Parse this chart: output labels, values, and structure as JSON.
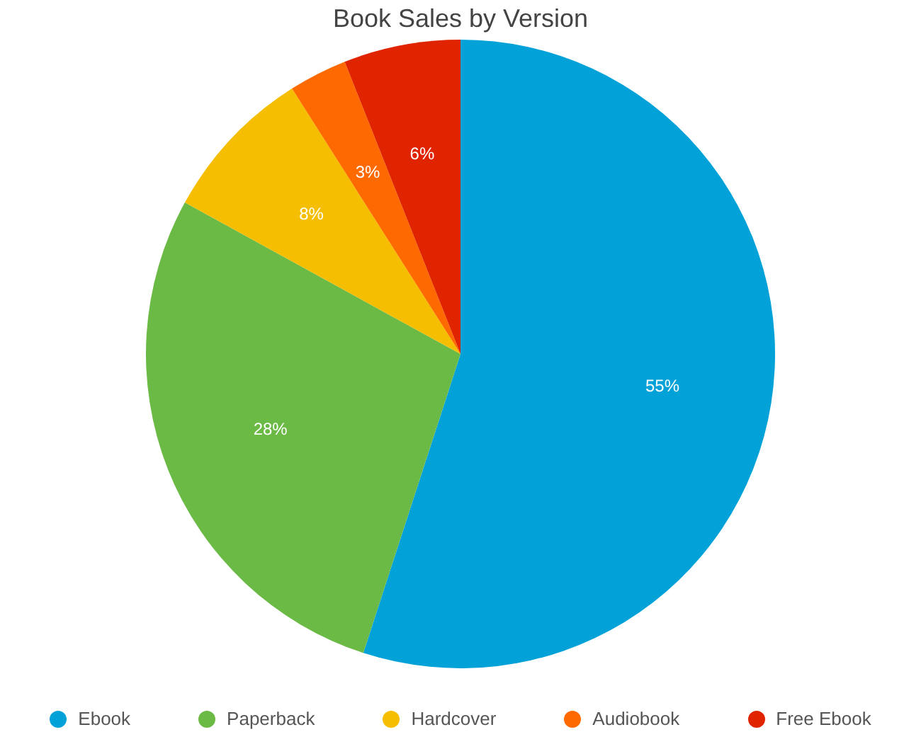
{
  "chart_data": {
    "type": "pie",
    "title": "Book Sales by Version",
    "categories": [
      "Ebook",
      "Paperback",
      "Hardcover",
      "Audiobook",
      "Free Ebook"
    ],
    "values": [
      55,
      28,
      8,
      3,
      6
    ],
    "colors": [
      "#02a2d9",
      "#6cba46",
      "#f5be00",
      "#ff6a00",
      "#e02400"
    ],
    "value_labels": [
      "55%",
      "28%",
      "8%",
      "3%",
      "6%"
    ],
    "legend": "bottom"
  }
}
